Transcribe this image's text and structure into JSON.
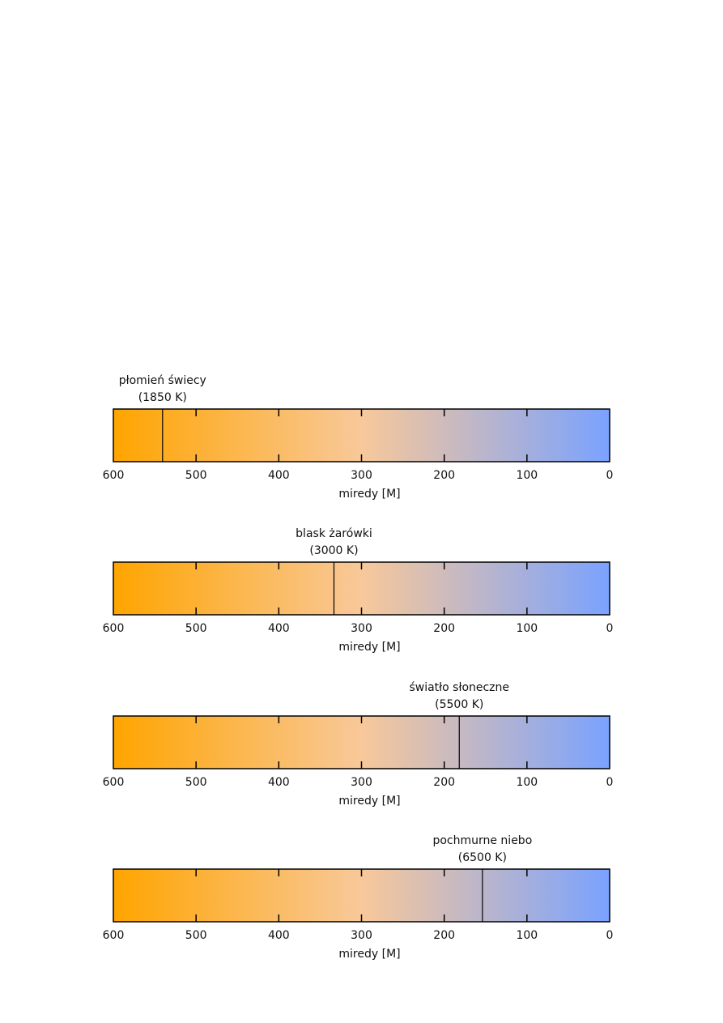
{
  "chart_data": {
    "type": "scale",
    "axis": {
      "label": "miredy [M]",
      "ticks": [
        600,
        500,
        400,
        300,
        200,
        100,
        0
      ],
      "range": [
        600,
        0
      ]
    },
    "gradient": {
      "from_color": "#ffa500",
      "mid_color": "#f8c89a",
      "to_color": "#7aa2ff"
    },
    "panels": [
      {
        "name_line": "płomień świecy",
        "temp_line": "(1850 K)",
        "kelvin": 1850,
        "mired": 540.5
      },
      {
        "name_line": "blask żarówki",
        "temp_line": "(3000 K)",
        "kelvin": 3000,
        "mired": 333.3
      },
      {
        "name_line": "światło słoneczne",
        "temp_line": "(5500 K)",
        "kelvin": 5500,
        "mired": 181.8
      },
      {
        "name_line": "pochmurne niebo",
        "temp_line": "(6500 K)",
        "kelvin": 6500,
        "mired": 153.8
      }
    ]
  }
}
